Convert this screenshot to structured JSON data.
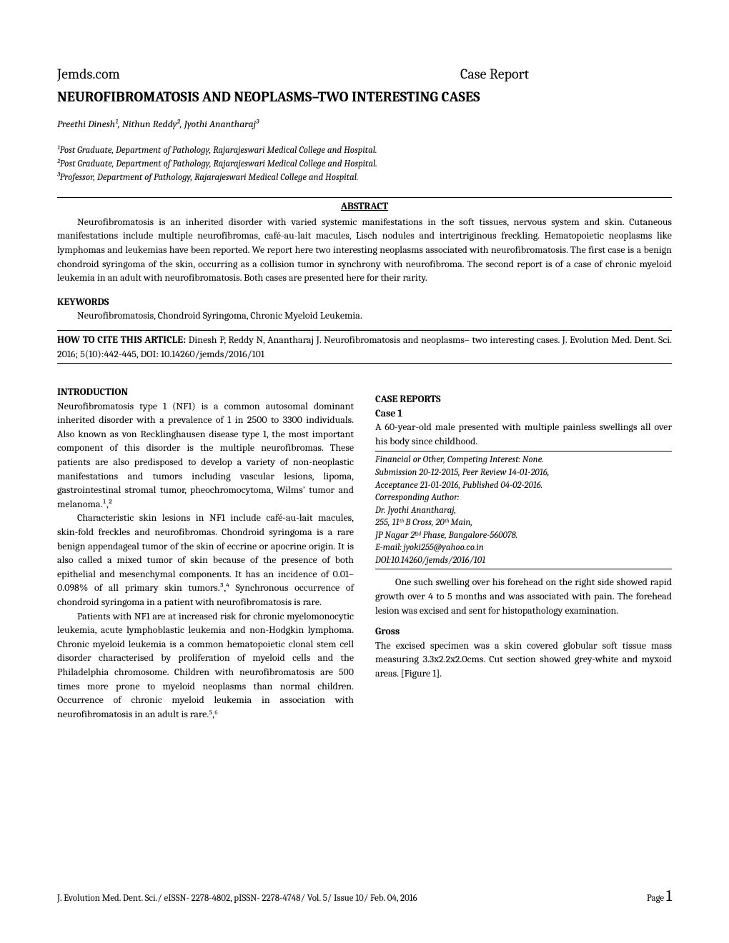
{
  "header": {
    "site": "Jemds.com",
    "category": "Case Report"
  },
  "title": "NEUROFIBROMATOSIS AND NEOPLASMS–TWO INTERESTING CASES",
  "authors_line": "Preethi Dinesh¹, Nithun Reddy², Jyothi Anantharaj³",
  "affiliations": [
    "¹Post Graduate, Department of Pathology, Rajarajeswari Medical College and Hospital.",
    "²Post Graduate, Department of Pathology, Rajarajeswari Medical College and Hospital.",
    "³Professor, Department of Pathology, Rajarajeswari Medical College and Hospital."
  ],
  "abstract_heading": "ABSTRACT",
  "abstract_text": "Neurofibromatosis is an inherited disorder with varied systemic manifestations in the soft tissues, nervous system and skin. Cutaneous manifestations include multiple neurofibromas, café-au-lait macules, Lisch nodules and intertriginous freckling. Hematopoietic neoplasms like lymphomas and leukemias have been reported. We report here two interesting neoplasms associated with neurofibromatosis. The first case is a benign chondroid syringoma of the skin, occurring as a collision tumor in synchrony with neurofibroma. The second report is of a case of chronic myeloid leukemia in an adult with neurofibromatosis. Both cases are presented here for their rarity.",
  "keywords_heading": "KEYWORDS",
  "keywords_text": "Neurofibromatosis, Chondroid Syringoma, Chronic Myeloid Leukemia.",
  "cite_label": "HOW TO CITE THIS ARTICLE: ",
  "cite_text": "Dinesh P, Reddy N, Anantharaj J. Neurofibromatosis and neoplasms– two interesting cases. J. Evolution Med. Dent. Sci. 2016; 5(10):442-445, DOI: 10.14260/jemds/2016/101",
  "left_col": {
    "intro_heading": "INTRODUCTION",
    "intro_p1": "Neurofibromatosis type 1 (NF1) is a common autosomal dominant inherited disorder with a prevalence of 1 in 2500 to 3300 individuals. Also known as von Recklinghausen disease type 1, the most important component of this disorder is the multiple neurofibromas. These patients are also predisposed to develop a variety of non-neoplastic manifestations and tumors including vascular lesions, lipoma, gastrointestinal stromal tumor, pheochromocytoma, Wilms' tumor and melanoma.¹,²",
    "intro_p2": "Characteristic skin lesions in NF1 include café-au-lait macules, skin-fold freckles and neurofibromas. Chondroid syringoma is a rare benign appendageal tumor of the skin of eccrine or apocrine origin. It is also called a mixed tumor of skin because of the presence of both epithelial and mesenchymal components. It has an incidence of 0.01–0.098% of all primary skin tumors.³,⁴ Synchronous occurrence of chondroid syringoma in a patient with neurofibromatosis is rare.",
    "intro_p3": "Patients with NF1 are at increased risk for chronic myelomonocytic leukemia, acute lymphoblastic leukemia and non-Hodgkin lymphoma. Chronic myeloid leukemia is a common hematopoietic clonal stem cell disorder characterised by proliferation of myeloid cells and the Philadelphia chromosome. Children with neurofibromatosis are 500 times more prone to myeloid neoplasms than normal children. Occurrence of chronic myeloid leukemia in association with neurofibromatosis in an adult is rare.⁵,⁶"
  },
  "right_col": {
    "case_reports_heading": "CASE REPORTS",
    "case1_heading": "Case 1",
    "case1_p1": "A 60-year-old male presented with multiple painless swellings all over his body since childhood.",
    "info_box": {
      "line1": "Financial or Other, Competing Interest: None.",
      "line2": "Submission 20-12-2015, Peer Review 14-01-2016,",
      "line3": "Acceptance 21-01-2016, Published 04-02-2016.",
      "line4": "Corresponding Author:",
      "line5": "Dr. Jyothi Anantharaj,",
      "line6": "255, 11ᵗʰ B Cross, 20ᵗʰ Main,",
      "line7": "JP Nagar 2ⁿᵈ Phase, Bangalore-560078.",
      "line8": "E-mail: jyoki255@yahoo.co.in",
      "line9": "DOI:10.14260/jemds/2016/101"
    },
    "case1_p2": "One such swelling over his forehead on the right side showed rapid growth over 4 to 5 months and was associated with pain. The forehead lesion was excised and sent for histopathology examination.",
    "gross_heading": "Gross",
    "gross_p1": "The excised specimen was a skin covered globular soft tissue mass measuring 3.3x2.2x2.0cms. Cut section showed grey-white and myxoid areas. [Figure 1]."
  },
  "footer": {
    "left": "J. Evolution Med. Dent. Sci./ eISSN- 2278-4802, pISSN- 2278-4748/ Vol. 5/ Issue 10/ Feb. 04, 2016",
    "page_label": "Page ",
    "page_number": "1"
  },
  "colors": {
    "text": "#000000",
    "background": "#ffffff",
    "rule": "#000000"
  },
  "typography": {
    "body_font": "Cambria, Georgia, serif",
    "body_size_pt": 11,
    "title_size_pt": 15,
    "header_size_pt": 15
  }
}
